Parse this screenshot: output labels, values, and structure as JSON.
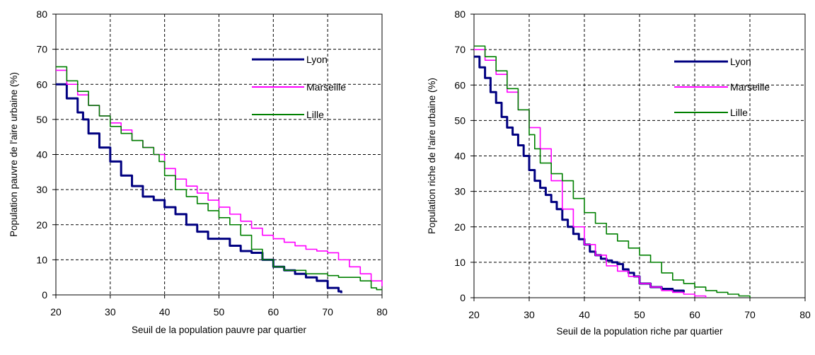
{
  "colors": {
    "Lyon": "#000080",
    "Marseille": "#ff00ff",
    "Lille": "#008000",
    "grid": "#000000"
  },
  "chart_data": [
    {
      "type": "line",
      "xlabel": "Seuil de la population pauvre par quartier",
      "ylabel": "Population pauvre de l'aire urbaine (%)",
      "xlim": [
        20,
        80
      ],
      "ylim": [
        0,
        80
      ],
      "xticks": [
        20,
        30,
        40,
        50,
        60,
        70,
        80
      ],
      "yticks": [
        0,
        10,
        20,
        30,
        40,
        50,
        60,
        70,
        80
      ],
      "grid": true,
      "legend": "top-right",
      "series": [
        {
          "name": "Lyon",
          "color": "#000080",
          "x": [
            20,
            22,
            24,
            25,
            26,
            28,
            30,
            32,
            34,
            36,
            38,
            40,
            42,
            44,
            46,
            48,
            50,
            52,
            54,
            56,
            58,
            60,
            62,
            64,
            66,
            68,
            70,
            72,
            72.5
          ],
          "y": [
            60,
            56,
            52,
            50,
            46,
            42,
            38,
            34,
            31,
            28,
            27,
            25,
            23,
            20,
            18,
            16,
            16,
            14,
            12.5,
            12,
            10,
            8,
            7,
            6,
            5,
            4,
            2,
            1,
            0.5
          ]
        },
        {
          "name": "Marseille",
          "color": "#ff00ff",
          "x": [
            20,
            22,
            24,
            26,
            28,
            30,
            32,
            34,
            36,
            38,
            40,
            42,
            44,
            46,
            48,
            50,
            52,
            54,
            56,
            58,
            60,
            62,
            64,
            66,
            68,
            70,
            72,
            74,
            76,
            78,
            80
          ],
          "y": [
            64,
            60,
            57,
            54,
            51,
            49,
            47,
            44,
            42,
            40,
            36,
            33,
            31,
            29,
            27,
            25,
            23,
            21,
            19,
            17,
            16,
            15,
            14,
            13,
            12.5,
            12,
            10,
            8,
            6,
            4,
            2.5
          ]
        },
        {
          "name": "Lille",
          "color": "#008000",
          "x": [
            20,
            22,
            24,
            26,
            28,
            30,
            32,
            34,
            36,
            38,
            39,
            40,
            42,
            44,
            46,
            48,
            50,
            52,
            54,
            56,
            58,
            60,
            62,
            64,
            66,
            68,
            70,
            72,
            74,
            76,
            78,
            79,
            80
          ],
          "y": [
            65,
            61,
            58,
            54,
            51,
            48,
            46,
            44,
            42,
            40,
            38,
            34,
            30,
            28,
            26,
            24,
            22,
            20,
            17,
            13,
            10,
            8,
            7,
            7,
            6,
            6,
            5.5,
            5,
            5,
            4,
            2,
            1.5,
            1.5
          ]
        }
      ]
    },
    {
      "type": "line",
      "xlabel": "Seuil de la population riche par quartier",
      "ylabel": "Population riche de l'aire urbaine (%)",
      "xlim": [
        20,
        80
      ],
      "ylim": [
        0,
        80
      ],
      "xticks": [
        20,
        30,
        40,
        50,
        60,
        70,
        80
      ],
      "yticks": [
        0,
        10,
        20,
        30,
        40,
        50,
        60,
        70,
        80
      ],
      "grid": true,
      "legend": "top-right",
      "series": [
        {
          "name": "Lyon",
          "color": "#000080",
          "x": [
            20,
            21,
            22,
            23,
            24,
            25,
            26,
            27,
            28,
            29,
            30,
            31,
            32,
            33,
            34,
            35,
            36,
            37,
            38,
            39,
            40,
            41,
            42,
            43,
            44,
            45,
            46,
            47,
            48,
            49,
            50,
            52,
            54,
            56,
            58
          ],
          "y": [
            68,
            65,
            62,
            58,
            55,
            51,
            48,
            46,
            43,
            40,
            36,
            33,
            31,
            29,
            27,
            25,
            22,
            20,
            18,
            16.5,
            15,
            13,
            12,
            11,
            10.5,
            10,
            9.5,
            8,
            7,
            6,
            4,
            3,
            2.5,
            2,
            1.5
          ]
        },
        {
          "name": "Marseille",
          "color": "#ff00ff",
          "x": [
            20,
            22,
            24,
            26,
            28,
            30,
            32,
            34,
            36,
            38,
            40,
            42,
            44,
            46,
            48,
            50,
            52,
            54,
            56,
            58,
            60,
            62
          ],
          "y": [
            70,
            67,
            63,
            58,
            53,
            48,
            42,
            33,
            25,
            20,
            15,
            12,
            9,
            7.5,
            6,
            4,
            3,
            2,
            1.5,
            1,
            0.5,
            0
          ]
        },
        {
          "name": "Lille",
          "color": "#008000",
          "x": [
            20,
            22,
            24,
            26,
            28,
            30,
            31,
            32,
            34,
            36,
            38,
            40,
            42,
            44,
            46,
            48,
            50,
            52,
            54,
            56,
            58,
            60,
            62,
            64,
            66,
            68,
            70
          ],
          "y": [
            71,
            68,
            64,
            59,
            53,
            46,
            42,
            38,
            35,
            33,
            28,
            24,
            21,
            18,
            16,
            14,
            12,
            10,
            7,
            5,
            4,
            3,
            2,
            1.5,
            1,
            0.5,
            0
          ]
        }
      ]
    }
  ]
}
